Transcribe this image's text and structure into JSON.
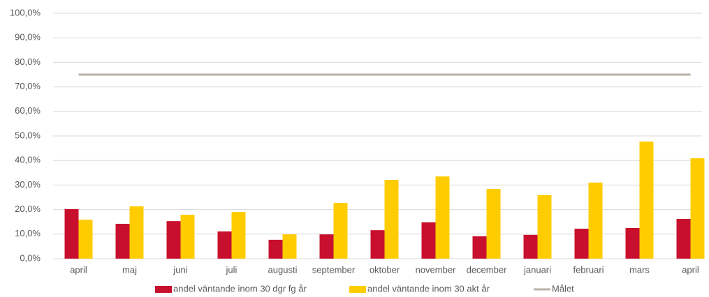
{
  "chart_data": {
    "type": "bar",
    "categories": [
      "april",
      "maj",
      "juni",
      "juli",
      "augusti",
      "september",
      "oktober",
      "november",
      "december",
      "januari",
      "februari",
      "mars",
      "april"
    ],
    "series": [
      {
        "name": "andel väntande inom 30 dgr fg år",
        "color": "#c8102e",
        "values": [
          20.2,
          14.2,
          15.3,
          11.1,
          7.7,
          9.9,
          11.6,
          14.8,
          9.1,
          9.7,
          12.2,
          12.5,
          16.2
        ]
      },
      {
        "name": "andel väntande inom 30 akt år",
        "color": "#ffcc00",
        "values": [
          15.9,
          21.3,
          17.9,
          19.0,
          9.9,
          22.7,
          32.1,
          33.5,
          28.4,
          25.9,
          31.0,
          47.7,
          40.9
        ]
      },
      {
        "name": "Målet",
        "type": "line",
        "color": "#bcb1a6",
        "values": [
          75,
          75,
          75,
          75,
          75,
          75,
          75,
          75,
          75,
          75,
          75,
          75,
          75
        ]
      }
    ],
    "ylim": [
      0,
      100
    ],
    "yticks": [
      {
        "value": 0,
        "label": "0,0%"
      },
      {
        "value": 10,
        "label": "10,0%"
      },
      {
        "value": 20,
        "label": "20,0%"
      },
      {
        "value": 30,
        "label": "30,0%"
      },
      {
        "value": 40,
        "label": "40,0%"
      },
      {
        "value": 50,
        "label": "50,0%"
      },
      {
        "value": 60,
        "label": "60,0%"
      },
      {
        "value": 70,
        "label": "70,0%"
      },
      {
        "value": 80,
        "label": "80,0%"
      },
      {
        "value": 90,
        "label": "90,0%"
      },
      {
        "value": 100,
        "label": "100,0%"
      }
    ],
    "grid": true,
    "legend": "bottom"
  }
}
